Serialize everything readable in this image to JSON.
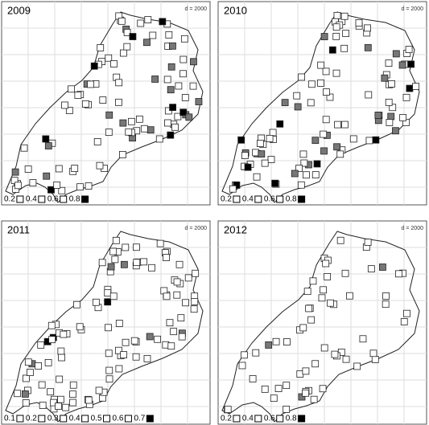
{
  "panels": [
    {
      "year": "2009",
      "scale": "d = 2000",
      "legend": [
        "0.2",
        "0.4",
        "0.6",
        "0.8"
      ]
    },
    {
      "year": "2010",
      "scale": "d = 2000",
      "legend": [
        "0.2",
        "0.4",
        "0.6",
        "0.8"
      ]
    },
    {
      "year": "2011",
      "scale": "d = 2000",
      "legend": [
        "0.1",
        "0.2",
        "0.3",
        "0.4",
        "0.5",
        "0.6",
        "0.7"
      ]
    },
    {
      "year": "2012",
      "scale": "d = 2000",
      "legend": [
        "0.2",
        "0.4",
        "0.6",
        "0.8"
      ]
    }
  ]
}
